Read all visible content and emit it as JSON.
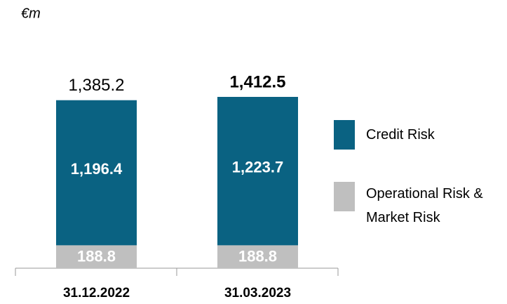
{
  "chart_data": {
    "type": "stacked_bar",
    "subtitle": "€m",
    "categories": [
      "31.12.2022",
      "31.03.2023"
    ],
    "series": [
      {
        "name": "Operational Risk & Market Risk",
        "color": "#bfbfbf",
        "values": [
          188.8,
          188.8
        ],
        "value_labels": [
          "188.8",
          "188.8"
        ]
      },
      {
        "name": "Credit Risk",
        "color": "#0a6282",
        "values": [
          1196.4,
          1223.7
        ],
        "value_labels": [
          "1,196.4",
          "1,223.7"
        ]
      }
    ],
    "totals": [
      1385.2,
      1412.5
    ],
    "total_labels": [
      "1,385.2",
      "1,412.5"
    ]
  }
}
